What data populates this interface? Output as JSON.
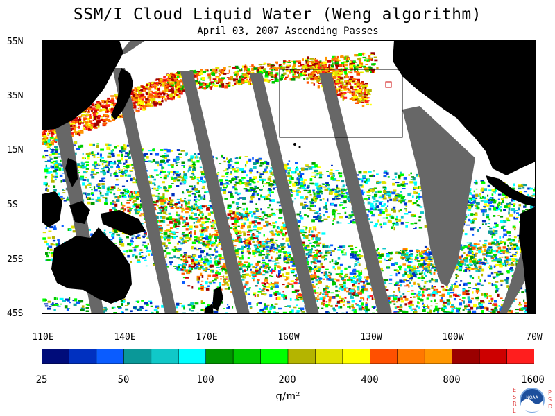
{
  "title": "SSM/I Cloud Liquid Water (Weng algorithm)",
  "subtitle": "April 03, 2007  Ascending Passes",
  "lat_labels": [
    "55N",
    "35N",
    "15N",
    "5S",
    "25S",
    "45S"
  ],
  "lon_labels": [
    "110E",
    "140E",
    "170E",
    "160W",
    "130W",
    "100W",
    "70W"
  ],
  "colorbar": {
    "tick_labels": [
      "25",
      "50",
      "100",
      "200",
      "400",
      "800",
      "1600"
    ],
    "colors": [
      "#000c7a",
      "#0030c0",
      "#0a5cff",
      "#0a9898",
      "#10c8c8",
      "#00ffff",
      "#009600",
      "#00c800",
      "#00ff00",
      "#b4b400",
      "#e1e100",
      "#ffff00",
      "#ff5000",
      "#ff7800",
      "#ff9600",
      "#9b0000",
      "#cd0000",
      "#ff1e1e"
    ],
    "units": "g/m²"
  },
  "logo": {
    "text": "NOAA",
    "left_letters": [
      "E",
      "S",
      "R",
      "L"
    ],
    "right_letters": [
      "P",
      "S",
      "D"
    ]
  },
  "map": {
    "extent": {
      "lon": [
        "110E",
        "70W"
      ],
      "lat": [
        "45S",
        "55N"
      ]
    },
    "land_color": "#000000",
    "no_data_color": "#676767",
    "background_color": "#ffffff",
    "outline_box": {
      "lon": [
        "160W",
        "117W"
      ],
      "lat": [
        "20N",
        "45N"
      ]
    }
  }
}
